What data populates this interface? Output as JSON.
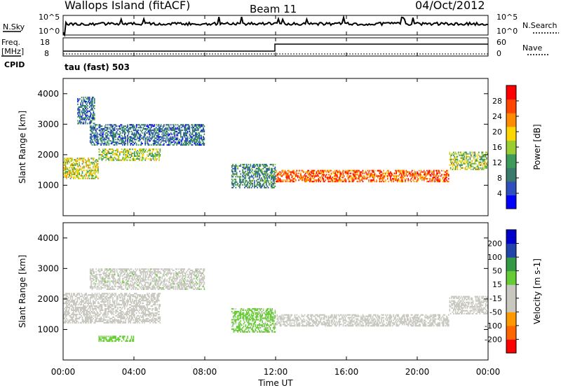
{
  "header": {
    "station": "Wallops Island (fitACF)",
    "beam": "Beam 11",
    "date": "04/Oct/2012"
  },
  "noise_panel": {
    "left_label": "N.Sky",
    "right_label": "N.Search",
    "left_ticks": [
      "10^5",
      "10^0"
    ],
    "right_ticks": [
      "10^5",
      "10^0"
    ]
  },
  "freq_panel": {
    "left_label": "Freq.",
    "left_unit": "[MHz]",
    "left_ticks": [
      "18",
      "8"
    ],
    "right_label": "Nave",
    "right_ticks": [
      "60",
      "0"
    ],
    "cpid_label": "CPID",
    "cpid_value": "tau (fast) 503"
  },
  "x_axis": {
    "label": "Time UT",
    "ticks": [
      "00:00",
      "04:00",
      "08:00",
      "12:00",
      "16:00",
      "20:00",
      "00:00"
    ]
  },
  "colors": {
    "power": [
      "#0000ff",
      "#2f4fbf",
      "#3a7a6a",
      "#3d9a5a",
      "#9acd32",
      "#ffd700",
      "#ff8c00",
      "#ff4500",
      "#ff0000"
    ],
    "velocity": [
      "#ff0000",
      "#ff6600",
      "#ff9900",
      "#c8c8c0",
      "#c8c8c0",
      "#66cc33",
      "#339944",
      "#2244aa",
      "#0000cc"
    ]
  },
  "chart_data": [
    {
      "type": "heatmap",
      "name": "power",
      "ylabel": "Slant Range [km]",
      "y_ticks": [
        "1000",
        "2000",
        "3000",
        "4000"
      ],
      "ylim": [
        0,
        4500
      ],
      "xlim": [
        0,
        24
      ],
      "colorbar_label": "Power [dB]",
      "colorbar_ticks": [
        "28",
        "24",
        "20",
        "16",
        "12",
        "8",
        "4"
      ],
      "colorbar_range": [
        0,
        32
      ],
      "echo_bands": [
        {
          "t0": 0.0,
          "t1": 2.0,
          "r0": 1200,
          "r1": 1900,
          "level": 18
        },
        {
          "t0": 2.0,
          "t1": 5.5,
          "r0": 1800,
          "r1": 2200,
          "level": 16
        },
        {
          "t0": 1.5,
          "t1": 8.0,
          "r0": 2300,
          "r1": 3000,
          "level": 8
        },
        {
          "t0": 12.0,
          "t1": 21.8,
          "r0": 1100,
          "r1": 1500,
          "level": 26
        },
        {
          "t0": 21.8,
          "t1": 24.0,
          "r0": 1500,
          "r1": 2100,
          "level": 16
        },
        {
          "t0": 0.8,
          "t1": 1.8,
          "r0": 3000,
          "r1": 3900,
          "level": 8
        },
        {
          "t0": 9.5,
          "t1": 12.0,
          "r0": 900,
          "r1": 1700,
          "level": 10
        }
      ]
    },
    {
      "type": "heatmap",
      "name": "velocity",
      "ylabel": "Slant Range [km]",
      "y_ticks": [
        "1000",
        "2000",
        "3000",
        "4000"
      ],
      "ylim": [
        0,
        4500
      ],
      "xlim": [
        0,
        24
      ],
      "colorbar_label": "Velocity [m s-1]",
      "colorbar_ticks": [
        "200",
        "100",
        "50",
        "15",
        "-15",
        "-50",
        "-100",
        "-200"
      ],
      "colorbar_range": [
        -250,
        250
      ],
      "echo_bands": [
        {
          "t0": 0.0,
          "t1": 5.5,
          "r0": 1200,
          "r1": 2200,
          "level": 0
        },
        {
          "t0": 1.5,
          "t1": 8.0,
          "r0": 2300,
          "r1": 3000,
          "level": 10
        },
        {
          "t0": 12.0,
          "t1": 21.8,
          "r0": 1100,
          "r1": 1500,
          "level": 0
        },
        {
          "t0": 21.8,
          "t1": 24.0,
          "r0": 1500,
          "r1": 2100,
          "level": 0
        },
        {
          "t0": 2.0,
          "t1": 4.0,
          "r0": 600,
          "r1": 800,
          "level": 60
        },
        {
          "t0": 9.5,
          "t1": 12.0,
          "r0": 900,
          "r1": 1700,
          "level": 40
        }
      ]
    }
  ]
}
